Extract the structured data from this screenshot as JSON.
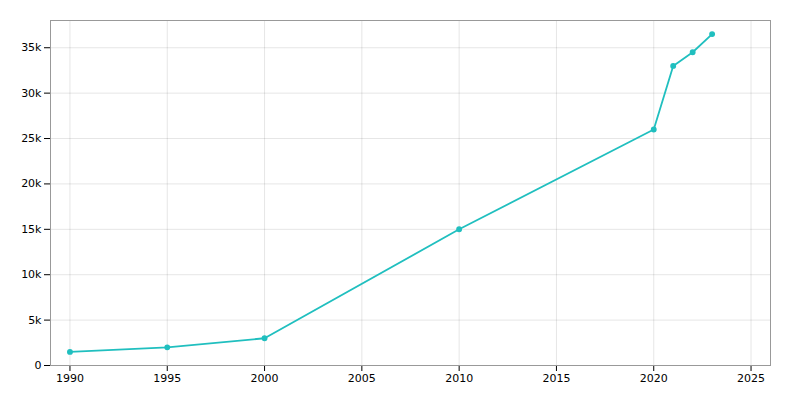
{
  "chart_data": {
    "type": "line",
    "x": [
      1990,
      1995,
      2000,
      2010,
      2020,
      2021,
      2022,
      2023
    ],
    "values": [
      1500,
      2000,
      3000,
      15000,
      26000,
      33000,
      34500,
      36500
    ],
    "color": "#20BFBF",
    "marker": "o",
    "xlim": [
      1989,
      2026
    ],
    "ylim": [
      0,
      38000
    ],
    "xticks": [
      1990,
      1995,
      2000,
      2005,
      2010,
      2015,
      2020,
      2025
    ],
    "yticks": [
      0,
      {
        "value": 5000,
        "label": "5k"
      },
      {
        "value": 10000,
        "label": "10k"
      },
      {
        "value": 15000,
        "label": "15k"
      },
      {
        "value": 20000,
        "label": "20k"
      },
      {
        "value": 25000,
        "label": "25k"
      },
      {
        "value": 30000,
        "label": "30k"
      },
      {
        "value": 35000,
        "label": "35k"
      }
    ],
    "grid": true
  }
}
